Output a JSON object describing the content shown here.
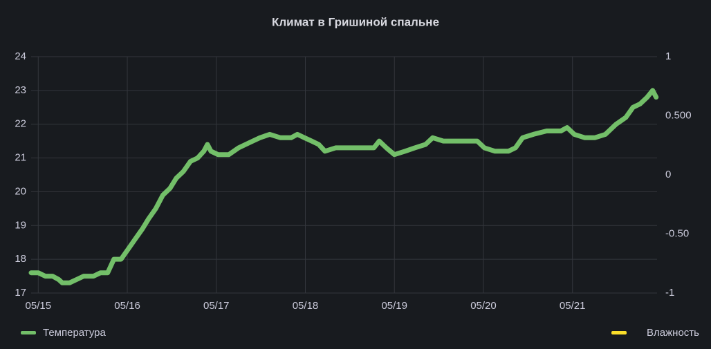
{
  "chart_data": {
    "type": "line",
    "title": "Климат в Гришиной спальне",
    "x": [
      -0.08,
      0,
      0.08,
      0.16,
      0.23,
      0.27,
      0.35,
      0.43,
      0.51,
      0.62,
      0.7,
      0.78,
      0.85,
      0.93,
      1.01,
      1.09,
      1.17,
      1.24,
      1.32,
      1.4,
      1.48,
      1.55,
      1.63,
      1.71,
      1.79,
      1.86,
      1.9,
      1.94,
      2.02,
      2.14,
      2.25,
      2.33,
      2.41,
      2.49,
      2.6,
      2.72,
      2.84,
      2.91,
      2.99,
      3.07,
      3.15,
      3.22,
      3.34,
      3.46,
      3.61,
      3.77,
      3.83,
      3.91,
      4.0,
      4.12,
      4.23,
      4.35,
      4.43,
      4.55,
      4.7,
      4.93,
      5.01,
      5.13,
      5.28,
      5.36,
      5.44,
      5.56,
      5.71,
      5.87,
      5.94,
      6.02,
      6.14,
      6.25,
      6.37,
      6.49,
      6.6,
      6.68,
      6.76,
      6.84,
      6.9,
      6.94
    ],
    "series": [
      {
        "name": "Температура",
        "color": "#73bf69",
        "values": [
          17.6,
          17.6,
          17.5,
          17.5,
          17.4,
          17.3,
          17.3,
          17.4,
          17.5,
          17.5,
          17.6,
          17.6,
          18.0,
          18.0,
          18.3,
          18.6,
          18.9,
          19.2,
          19.5,
          19.9,
          20.1,
          20.4,
          20.6,
          20.9,
          21.0,
          21.2,
          21.4,
          21.2,
          21.1,
          21.1,
          21.3,
          21.4,
          21.5,
          21.6,
          21.7,
          21.6,
          21.6,
          21.7,
          21.6,
          21.5,
          21.4,
          21.2,
          21.3,
          21.3,
          21.3,
          21.3,
          21.5,
          21.3,
          21.1,
          21.2,
          21.3,
          21.4,
          21.6,
          21.5,
          21.5,
          21.5,
          21.3,
          21.2,
          21.2,
          21.3,
          21.6,
          21.7,
          21.8,
          21.8,
          21.9,
          21.7,
          21.6,
          21.6,
          21.7,
          22.0,
          22.2,
          22.5,
          22.6,
          22.8,
          23.0,
          22.8
        ]
      },
      {
        "name": "Влажность",
        "color": "#fade2a",
        "axis": "y2",
        "values": [
          null,
          null,
          null,
          null,
          null,
          null,
          null,
          null,
          null,
          null,
          null,
          null,
          null,
          null,
          null,
          null,
          null,
          null,
          null,
          null,
          null,
          null,
          null,
          null,
          null,
          null,
          null,
          null,
          null,
          null,
          null,
          null,
          null,
          null,
          null,
          null,
          null,
          null,
          null,
          null,
          null,
          null,
          null,
          null,
          null,
          null,
          null,
          null,
          null,
          null,
          null,
          null,
          null,
          null,
          null,
          null,
          null,
          null,
          null,
          null,
          null,
          null,
          null,
          null,
          null,
          null,
          null,
          null,
          null,
          null,
          null,
          null,
          null,
          null,
          null,
          null
        ]
      }
    ],
    "xlim": [
      -0.08,
      6.95
    ],
    "xticks": [
      {
        "value": 0,
        "label": "05/15"
      },
      {
        "value": 1,
        "label": "05/16"
      },
      {
        "value": 2,
        "label": "05/17"
      },
      {
        "value": 3,
        "label": "05/18"
      },
      {
        "value": 4,
        "label": "05/19"
      },
      {
        "value": 5,
        "label": "05/20"
      },
      {
        "value": 6,
        "label": "05/21"
      }
    ],
    "ylim": [
      17,
      24
    ],
    "yticks": [
      17,
      18,
      19,
      20,
      21,
      22,
      23,
      24
    ],
    "y2lim": [
      -1,
      1
    ],
    "y2ticks": [
      -1,
      {
        "value": -0.5,
        "label": "-0.50"
      },
      0,
      {
        "value": 0.5,
        "label": "0.500"
      },
      1
    ],
    "grid": true
  }
}
